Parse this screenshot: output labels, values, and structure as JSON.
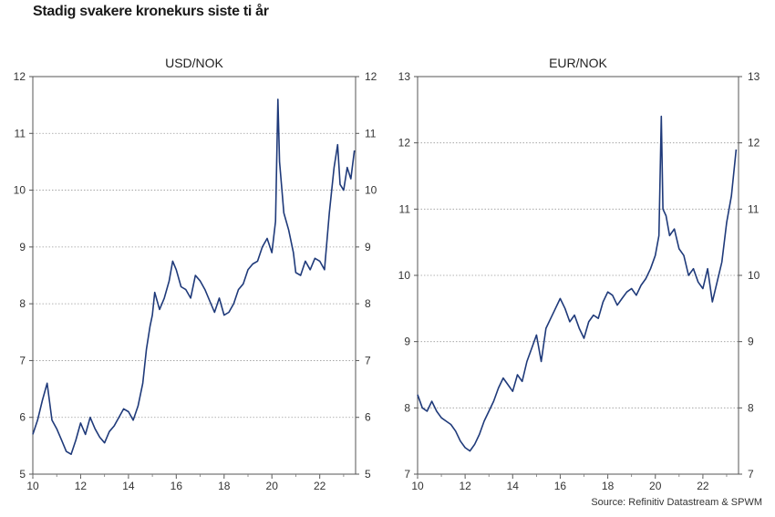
{
  "title": "Stadig svakere kronekurs siste ti år",
  "source": "Source: Refinitiv Datastream & SPWM",
  "line_color": "#1f3a7a",
  "chart_data": [
    {
      "type": "line",
      "title": "USD/NOK",
      "xlim": [
        2010,
        2023.5
      ],
      "ylim": [
        5,
        12
      ],
      "yticks": [
        5,
        6,
        7,
        8,
        9,
        10,
        11,
        12
      ],
      "xticks": [
        2010,
        2012,
        2014,
        2016,
        2018,
        2020,
        2022
      ],
      "xtick_labels": [
        "10",
        "12",
        "14",
        "16",
        "18",
        "20",
        "22"
      ],
      "grid": true,
      "series": [
        {
          "x": [
            2010.0,
            2010.2,
            2010.4,
            2010.6,
            2010.8,
            2011.0,
            2011.2,
            2011.4,
            2011.6,
            2011.8,
            2012.0,
            2012.2,
            2012.4,
            2012.6,
            2012.8,
            2013.0,
            2013.2,
            2013.4,
            2013.6,
            2013.8,
            2014.0,
            2014.2,
            2014.4,
            2014.6,
            2014.75,
            2014.9,
            2015.0,
            2015.1,
            2015.3,
            2015.5,
            2015.7,
            2015.85,
            2016.0,
            2016.2,
            2016.4,
            2016.6,
            2016.8,
            2017.0,
            2017.2,
            2017.4,
            2017.6,
            2017.8,
            2018.0,
            2018.2,
            2018.4,
            2018.6,
            2018.8,
            2019.0,
            2019.2,
            2019.4,
            2019.6,
            2019.8,
            2020.0,
            2020.15,
            2020.25,
            2020.32,
            2020.4,
            2020.5,
            2020.7,
            2020.9,
            2021.0,
            2021.2,
            2021.4,
            2021.6,
            2021.8,
            2022.0,
            2022.2,
            2022.4,
            2022.6,
            2022.75,
            2022.85,
            2023.0,
            2023.15,
            2023.3,
            2023.45
          ],
          "y": [
            5.7,
            5.95,
            6.3,
            6.6,
            5.95,
            5.8,
            5.6,
            5.4,
            5.35,
            5.6,
            5.9,
            5.7,
            6.0,
            5.8,
            5.65,
            5.55,
            5.75,
            5.85,
            6.0,
            6.15,
            6.1,
            5.95,
            6.2,
            6.6,
            7.2,
            7.6,
            7.8,
            8.2,
            7.9,
            8.1,
            8.4,
            8.75,
            8.6,
            8.3,
            8.25,
            8.1,
            8.5,
            8.4,
            8.25,
            8.05,
            7.85,
            8.1,
            7.8,
            7.85,
            8.0,
            8.25,
            8.35,
            8.6,
            8.7,
            8.75,
            9.0,
            9.15,
            8.9,
            9.45,
            11.6,
            10.5,
            10.1,
            9.6,
            9.3,
            8.9,
            8.55,
            8.5,
            8.75,
            8.6,
            8.8,
            8.75,
            8.6,
            9.6,
            10.4,
            10.8,
            10.1,
            10.0,
            10.4,
            10.2,
            10.7
          ]
        }
      ]
    },
    {
      "type": "line",
      "title": "EUR/NOK",
      "xlim": [
        2010,
        2023.5
      ],
      "ylim": [
        7,
        13
      ],
      "yticks": [
        7,
        8,
        9,
        10,
        11,
        12,
        13
      ],
      "xticks": [
        2010,
        2012,
        2014,
        2016,
        2018,
        2020,
        2022
      ],
      "xtick_labels": [
        "10",
        "12",
        "14",
        "16",
        "18",
        "20",
        "22"
      ],
      "grid": true,
      "series": [
        {
          "x": [
            2010.0,
            2010.2,
            2010.4,
            2010.6,
            2010.8,
            2011.0,
            2011.2,
            2011.4,
            2011.6,
            2011.8,
            2012.0,
            2012.2,
            2012.4,
            2012.6,
            2012.8,
            2013.0,
            2013.2,
            2013.4,
            2013.6,
            2013.8,
            2014.0,
            2014.2,
            2014.4,
            2014.6,
            2014.8,
            2015.0,
            2015.2,
            2015.4,
            2015.6,
            2015.8,
            2016.0,
            2016.2,
            2016.4,
            2016.6,
            2016.8,
            2017.0,
            2017.2,
            2017.4,
            2017.6,
            2017.8,
            2018.0,
            2018.2,
            2018.4,
            2018.6,
            2018.8,
            2019.0,
            2019.2,
            2019.4,
            2019.6,
            2019.8,
            2020.0,
            2020.15,
            2020.25,
            2020.32,
            2020.45,
            2020.6,
            2020.8,
            2021.0,
            2021.2,
            2021.4,
            2021.6,
            2021.8,
            2022.0,
            2022.2,
            2022.4,
            2022.6,
            2022.8,
            2023.0,
            2023.2,
            2023.4
          ],
          "y": [
            8.2,
            8.0,
            7.95,
            8.1,
            7.95,
            7.85,
            7.8,
            7.75,
            7.65,
            7.5,
            7.4,
            7.35,
            7.45,
            7.6,
            7.8,
            7.95,
            8.1,
            8.3,
            8.45,
            8.35,
            8.25,
            8.5,
            8.4,
            8.7,
            8.9,
            9.1,
            8.7,
            9.2,
            9.35,
            9.5,
            9.65,
            9.5,
            9.3,
            9.4,
            9.2,
            9.05,
            9.3,
            9.4,
            9.35,
            9.6,
            9.75,
            9.7,
            9.55,
            9.65,
            9.75,
            9.8,
            9.7,
            9.85,
            9.95,
            10.1,
            10.3,
            10.6,
            12.4,
            11.0,
            10.9,
            10.6,
            10.7,
            10.4,
            10.3,
            10.0,
            10.1,
            9.9,
            9.8,
            10.1,
            9.6,
            9.9,
            10.2,
            10.8,
            11.2,
            11.9
          ]
        }
      ]
    }
  ]
}
